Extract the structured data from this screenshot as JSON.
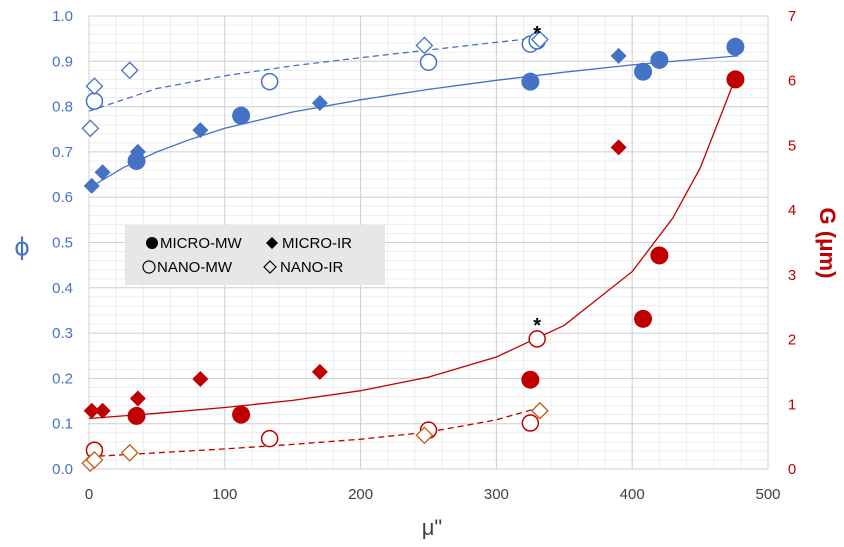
{
  "chart_data": {
    "type": "scatter",
    "xlabel": "μ\"",
    "ylabel_left": "ϕ",
    "ylabel_right": "G (μm)",
    "xlim": [
      0,
      500
    ],
    "ylim_left": [
      0.0,
      1.0
    ],
    "ylim_right": [
      0,
      7
    ],
    "x_ticks": [
      "0",
      "100",
      "200",
      "300",
      "400",
      "500"
    ],
    "y_left_ticks": [
      "0.0",
      "0.1",
      "0.2",
      "0.3",
      "0.4",
      "0.5",
      "0.6",
      "0.7",
      "0.8",
      "0.9",
      "1.0"
    ],
    "y_right_ticks": [
      "0",
      "1",
      "2",
      "3",
      "4",
      "5",
      "6",
      "7"
    ],
    "grid": true,
    "legend": {
      "placement": "middle-left",
      "entries": [
        "MICRO-MW",
        "MICRO-IR",
        "NANO-MW",
        "NANO-IR"
      ]
    },
    "annotations": [
      {
        "text": "*",
        "x": 330,
        "y_left": 0.965
      },
      {
        "text": "*",
        "x": 330,
        "y_left": 0.32
      }
    ],
    "colors": {
      "phi": "#4472C4",
      "g": "#C00000",
      "g_nano_ir": "#C55A11"
    },
    "series": [
      {
        "name": "MICRO-MW",
        "quantity": "phi",
        "axis": "left",
        "marker": "filled-circle",
        "points": [
          [
            35,
            0.68
          ],
          [
            112,
            0.78
          ],
          [
            325,
            0.855
          ],
          [
            408,
            0.877
          ],
          [
            420,
            0.903
          ],
          [
            476,
            0.932
          ]
        ]
      },
      {
        "name": "MICRO-IR",
        "quantity": "phi",
        "axis": "left",
        "marker": "filled-diamond",
        "points": [
          [
            2,
            0.625
          ],
          [
            10,
            0.655
          ],
          [
            36,
            0.7
          ],
          [
            82,
            0.748
          ],
          [
            170,
            0.808
          ],
          [
            390,
            0.912
          ]
        ]
      },
      {
        "name": "NANO-MW",
        "quantity": "phi",
        "axis": "left",
        "marker": "open-circle",
        "points": [
          [
            4,
            0.812
          ],
          [
            133,
            0.855
          ],
          [
            250,
            0.898
          ],
          [
            325,
            0.938
          ],
          [
            330,
            0.945
          ]
        ]
      },
      {
        "name": "NANO-IR",
        "quantity": "phi",
        "axis": "left",
        "marker": "open-diamond",
        "points": [
          [
            1,
            0.752
          ],
          [
            4,
            0.845
          ],
          [
            30,
            0.88
          ],
          [
            247,
            0.935
          ],
          [
            332,
            0.948
          ]
        ]
      },
      {
        "name": "MICRO-MW",
        "quantity": "G",
        "axis": "right",
        "marker": "filled-circle",
        "points": [
          [
            35,
            0.82
          ],
          [
            112,
            0.84
          ],
          [
            325,
            1.38
          ],
          [
            408,
            2.32
          ],
          [
            420,
            3.3
          ],
          [
            476,
            6.02
          ]
        ]
      },
      {
        "name": "MICRO-IR",
        "quantity": "G",
        "axis": "right",
        "marker": "filled-diamond",
        "points": [
          [
            2,
            0.9
          ],
          [
            10,
            0.9
          ],
          [
            36,
            1.09
          ],
          [
            82,
            1.39
          ],
          [
            170,
            1.5
          ],
          [
            390,
            4.97
          ]
        ]
      },
      {
        "name": "NANO-MW",
        "quantity": "G",
        "axis": "right",
        "marker": "open-circle",
        "points": [
          [
            4,
            0.29
          ],
          [
            133,
            0.47
          ],
          [
            250,
            0.6
          ],
          [
            325,
            0.71
          ],
          [
            330,
            2.01
          ]
        ]
      },
      {
        "name": "NANO-IR",
        "quantity": "G",
        "axis": "right",
        "marker": "open-diamond",
        "points": [
          [
            1,
            0.09
          ],
          [
            4,
            0.14
          ],
          [
            30,
            0.25
          ],
          [
            247,
            0.52
          ],
          [
            332,
            0.9
          ]
        ]
      }
    ],
    "trendlines": [
      {
        "quantity": "phi",
        "axis": "left",
        "style": "solid",
        "points": [
          [
            0,
            0.62
          ],
          [
            25,
            0.665
          ],
          [
            50,
            0.7
          ],
          [
            75,
            0.728
          ],
          [
            100,
            0.752
          ],
          [
            150,
            0.788
          ],
          [
            200,
            0.815
          ],
          [
            250,
            0.838
          ],
          [
            300,
            0.858
          ],
          [
            350,
            0.876
          ],
          [
            400,
            0.892
          ],
          [
            450,
            0.905
          ],
          [
            478,
            0.912
          ]
        ]
      },
      {
        "quantity": "phi",
        "axis": "left",
        "style": "dashed",
        "points": [
          [
            0,
            0.79
          ],
          [
            50,
            0.84
          ],
          [
            100,
            0.868
          ],
          [
            150,
            0.89
          ],
          [
            200,
            0.908
          ],
          [
            250,
            0.925
          ],
          [
            300,
            0.942
          ],
          [
            335,
            0.953
          ]
        ]
      },
      {
        "quantity": "G",
        "axis": "right",
        "style": "solid",
        "points": [
          [
            0,
            0.78
          ],
          [
            50,
            0.86
          ],
          [
            100,
            0.95
          ],
          [
            150,
            1.06
          ],
          [
            200,
            1.21
          ],
          [
            250,
            1.42
          ],
          [
            300,
            1.73
          ],
          [
            350,
            2.22
          ],
          [
            400,
            3.05
          ],
          [
            430,
            3.88
          ],
          [
            450,
            4.65
          ],
          [
            465,
            5.45
          ],
          [
            478,
            6.15
          ]
        ]
      },
      {
        "quantity": "G",
        "axis": "right",
        "style": "dashed",
        "points": [
          [
            0,
            0.19
          ],
          [
            50,
            0.25
          ],
          [
            100,
            0.31
          ],
          [
            150,
            0.38
          ],
          [
            200,
            0.46
          ],
          [
            250,
            0.57
          ],
          [
            300,
            0.76
          ],
          [
            332,
            0.95
          ]
        ]
      }
    ]
  }
}
